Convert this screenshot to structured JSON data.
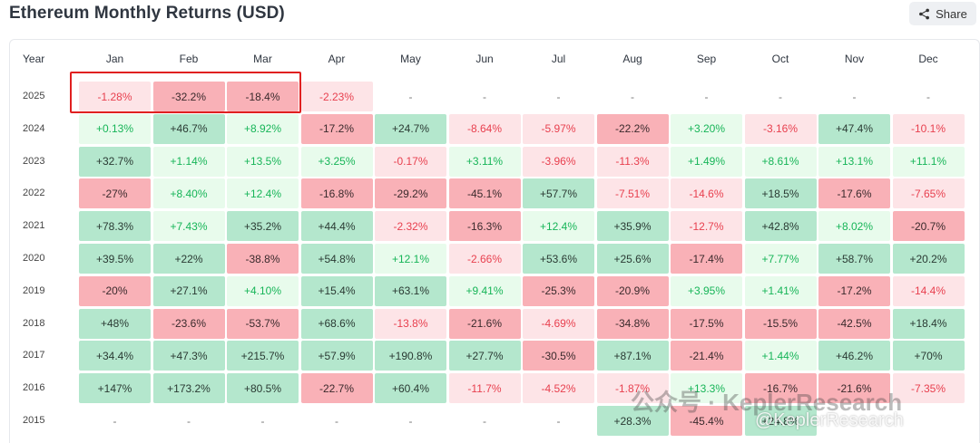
{
  "title": "Ethereum Monthly Returns (USD)",
  "share_label": "Share",
  "year_header": "Year",
  "months": [
    "Jan",
    "Feb",
    "Mar",
    "Apr",
    "May",
    "Jun",
    "Jul",
    "Aug",
    "Sep",
    "Oct",
    "Nov",
    "Dec"
  ],
  "rows": [
    {
      "year": "2025",
      "values": [
        "-1.28%",
        "-32.2%",
        "-18.4%",
        "-2.23%",
        "-",
        "-",
        "-",
        "-",
        "-",
        "-",
        "-",
        "-"
      ]
    },
    {
      "year": "2024",
      "values": [
        "+0.13%",
        "+46.7%",
        "+8.92%",
        "-17.2%",
        "+24.7%",
        "-8.64%",
        "-5.97%",
        "-22.2%",
        "+3.20%",
        "-3.16%",
        "+47.4%",
        "-10.1%"
      ]
    },
    {
      "year": "2023",
      "values": [
        "+32.7%",
        "+1.14%",
        "+13.5%",
        "+3.25%",
        "-0.17%",
        "+3.11%",
        "-3.96%",
        "-11.3%",
        "+1.49%",
        "+8.61%",
        "+13.1%",
        "+11.1%"
      ]
    },
    {
      "year": "2022",
      "values": [
        "-27%",
        "+8.40%",
        "+12.4%",
        "-16.8%",
        "-29.2%",
        "-45.1%",
        "+57.7%",
        "-7.51%",
        "-14.6%",
        "+18.5%",
        "-17.6%",
        "-7.65%"
      ]
    },
    {
      "year": "2021",
      "values": [
        "+78.3%",
        "+7.43%",
        "+35.2%",
        "+44.4%",
        "-2.32%",
        "-16.3%",
        "+12.4%",
        "+35.9%",
        "-12.7%",
        "+42.8%",
        "+8.02%",
        "-20.7%"
      ]
    },
    {
      "year": "2020",
      "values": [
        "+39.5%",
        "+22%",
        "-38.8%",
        "+54.8%",
        "+12.1%",
        "-2.66%",
        "+53.6%",
        "+25.6%",
        "-17.4%",
        "+7.77%",
        "+58.7%",
        "+20.2%"
      ]
    },
    {
      "year": "2019",
      "values": [
        "-20%",
        "+27.1%",
        "+4.10%",
        "+15.4%",
        "+63.1%",
        "+9.41%",
        "-25.3%",
        "-20.9%",
        "+3.95%",
        "+1.41%",
        "-17.2%",
        "-14.4%"
      ]
    },
    {
      "year": "2018",
      "values": [
        "+48%",
        "-23.6%",
        "-53.7%",
        "+68.6%",
        "-13.8%",
        "-21.6%",
        "-4.69%",
        "-34.8%",
        "-17.5%",
        "-15.5%",
        "-42.5%",
        "+18.4%"
      ]
    },
    {
      "year": "2017",
      "values": [
        "+34.4%",
        "+47.3%",
        "+215.7%",
        "+57.9%",
        "+190.8%",
        "+27.7%",
        "-30.5%",
        "+87.1%",
        "-21.4%",
        "+1.44%",
        "+46.2%",
        "+70%"
      ]
    },
    {
      "year": "2016",
      "values": [
        "+147%",
        "+173.2%",
        "+80.5%",
        "-22.7%",
        "+60.4%",
        "-11.7%",
        "-4.52%",
        "-1.87%",
        "+13.3%",
        "-16.7%",
        "-21.6%",
        "-7.35%"
      ]
    },
    {
      "year": "2015",
      "values": [
        "-",
        "-",
        "-",
        "-",
        "-",
        "-",
        "-",
        "+28.3%",
        "-45.4%",
        "+24.8%",
        "",
        ""
      ]
    }
  ],
  "colors": {
    "strong_pos_bg": "#b4e7cd",
    "strong_pos_fg": "#2a3a33",
    "light_pos_bg": "#e8fbec",
    "light_pos_fg": "#17b558",
    "strong_neg_bg": "#f9b1b7",
    "strong_neg_fg": "#3a2a2c",
    "light_neg_bg": "#fde4e7",
    "light_neg_fg": "#e8404f",
    "highlight_border": "#e02020"
  },
  "watermark_text": "公众号 · KeplerResearch",
  "watermark_corner": "@KeplerResearch"
}
